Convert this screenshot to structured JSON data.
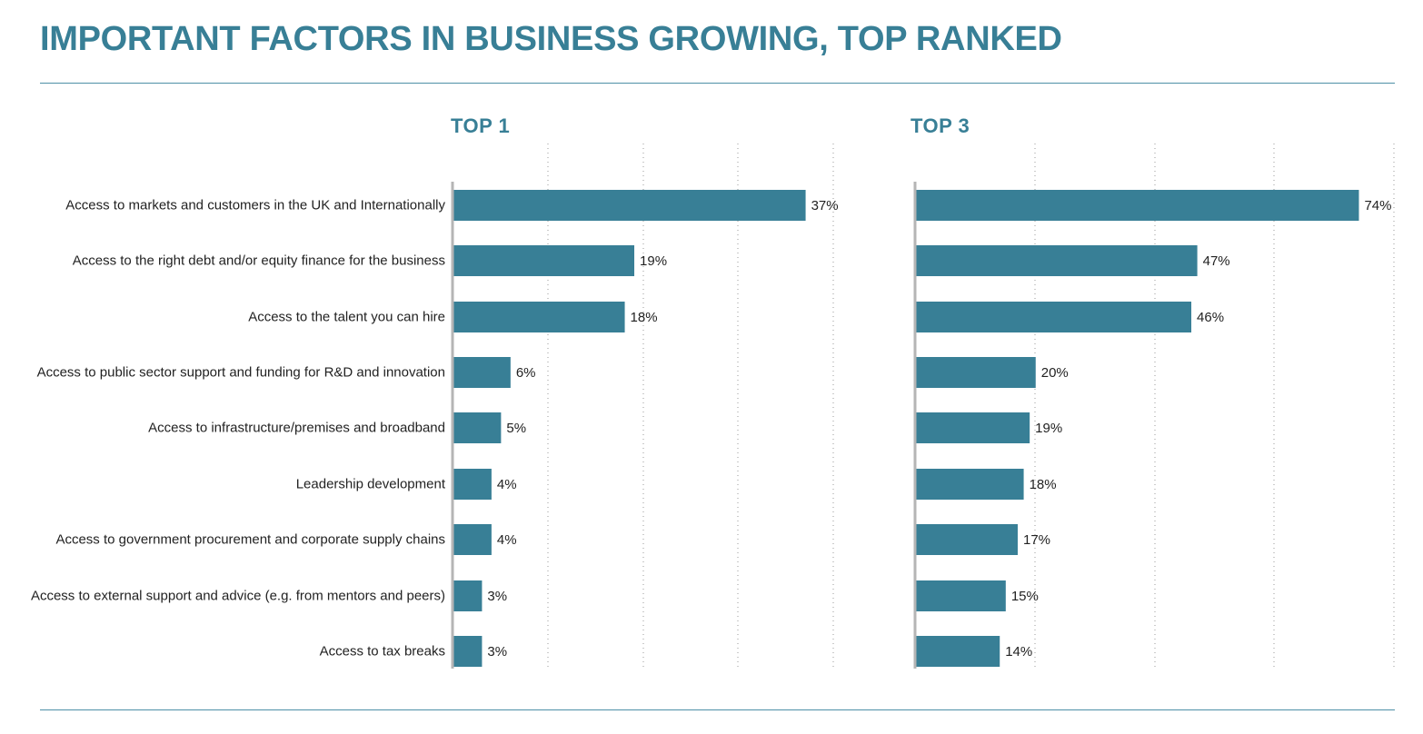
{
  "title": "IMPORTANT FACTORS IN BUSINESS GROWING, TOP RANKED",
  "colors": {
    "accent": "#387f96",
    "bar": "#387f96",
    "rule": "#4d8fa6",
    "grid": "#9a9a9a",
    "axis": "#b5b5b5"
  },
  "chart_data": [
    {
      "type": "bar",
      "orientation": "horizontal",
      "title": "TOP 1",
      "categories": [
        "Access to markets and customers in the UK and Internationally",
        "Access to the right debt and/or equity finance for the business",
        "Access to the talent you can hire",
        "Access to public sector support and funding for R&D and innovation",
        "Access to infrastructure/premises and broadband",
        "Leadership development",
        "Access to government procurement and corporate supply chains",
        "Access to external support and advice (e.g. from mentors and peers)",
        "Access to tax breaks"
      ],
      "values": [
        37,
        19,
        18,
        6,
        5,
        4,
        4,
        3,
        3
      ],
      "value_labels": [
        "37%",
        "19%",
        "18%",
        "6%",
        "5%",
        "4%",
        "4%",
        "3%",
        "3%"
      ],
      "xlim": [
        0,
        40
      ],
      "grid": true,
      "grid_style": "dotted"
    },
    {
      "type": "bar",
      "orientation": "horizontal",
      "title": "TOP 3",
      "categories": [
        "Access to markets and customers in the UK and Internationally",
        "Access to the right debt and/or equity finance for the business",
        "Access to the talent you can hire",
        "Access to public sector support and funding for R&D and innovation",
        "Access to infrastructure/premises and broadband",
        "Leadership development",
        "Access to government procurement and corporate supply chains",
        "Access to external support and advice (e.g. from mentors and peers)",
        "Access to tax breaks"
      ],
      "values": [
        74,
        47,
        46,
        20,
        19,
        18,
        17,
        15,
        14
      ],
      "value_labels": [
        "74%",
        "47%",
        "46%",
        "20%",
        "19%",
        "18%",
        "17%",
        "15%",
        "14%"
      ],
      "xlim": [
        0,
        80
      ],
      "grid": true,
      "grid_style": "dotted"
    }
  ]
}
